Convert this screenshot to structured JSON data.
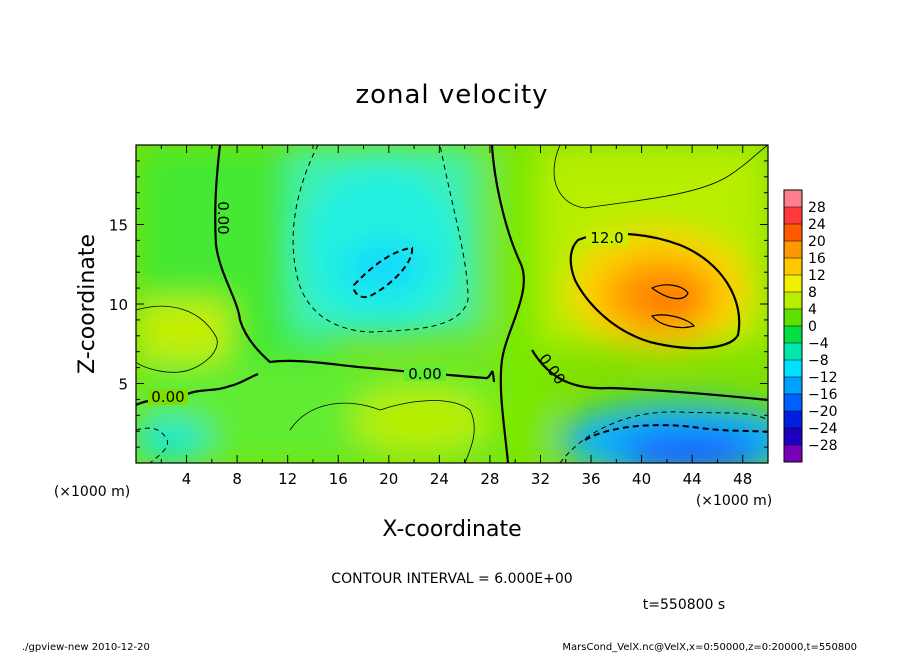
{
  "chart_data": {
    "type": "heatmap",
    "title": "zonal velocity",
    "xlabel": "X-coordinate",
    "ylabel": "Z-coordinate",
    "x_unit_label": "(×1000 m)",
    "y_unit_label": "(×1000 m)",
    "xlim": [
      0,
      50
    ],
    "ylim": [
      0,
      20
    ],
    "x_ticks": [
      "4",
      "8",
      "12",
      "16",
      "20",
      "24",
      "28",
      "32",
      "36",
      "40",
      "44",
      "48"
    ],
    "y_ticks": [
      "5",
      "10",
      "15"
    ],
    "colorbar_levels": [
      "28",
      "24",
      "20",
      "16",
      "12",
      "8",
      "4",
      "0",
      "−4",
      "−8",
      "−12",
      "−16",
      "−20",
      "−24",
      "−28"
    ],
    "contour_labels": [
      "0.00",
      "0.00",
      "0.00",
      "0.00",
      "12.0"
    ],
    "contour_interval_text": "CONTOUR INTERVAL = 6.000E+00",
    "time_text": "t=550800 s",
    "footer_left": "./gpview-new   2010-12-20",
    "footer_right": "MarsCond_VelX.nc@VelX,x=0:50000,z=0:20000,t=550800",
    "field_summary": [
      {
        "feature": "negative core",
        "x": 19.5,
        "z": 12,
        "value": -12
      },
      {
        "feature": "positive core",
        "x": 41,
        "z": 10,
        "value": 20
      },
      {
        "feature": "negative lower region",
        "x": 43,
        "z": 1,
        "value": -20
      }
    ]
  }
}
